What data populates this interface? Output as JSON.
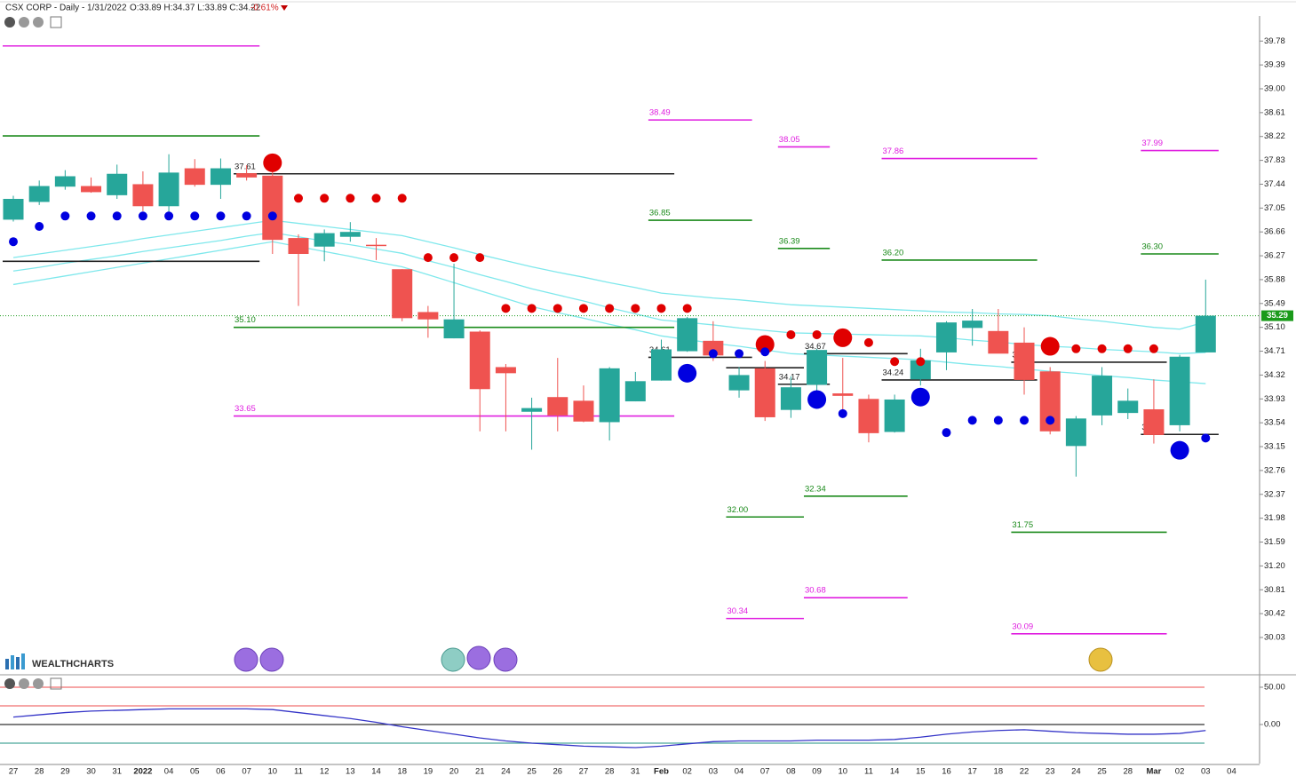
{
  "header": {
    "symbol_line": "CSX CORP - Daily - 1/31/2022",
    "ohlc": "O:33.89 H:34.37 L:33.89 C:34.22",
    "change": "-0.61%"
  },
  "logo": "WEALTHCHARTS",
  "chart_data": [
    {
      "type": "candlestick",
      "categories": [
        "27",
        "28",
        "29",
        "30",
        "31",
        "2022",
        "04",
        "05",
        "06",
        "07",
        "10",
        "11",
        "12",
        "13",
        "14",
        "18",
        "19",
        "20",
        "21",
        "24",
        "25",
        "26",
        "27",
        "28",
        "31",
        "Feb",
        "02",
        "03",
        "04",
        "07",
        "08",
        "09",
        "10",
        "11",
        "14",
        "15",
        "16",
        "17",
        "18",
        "22",
        "23",
        "24",
        "25",
        "28",
        "Mar",
        "02",
        "03",
        "04"
      ],
      "open": [
        36.86,
        37.15,
        37.4,
        37.41,
        37.26,
        37.44,
        37.08,
        37.7,
        37.43,
        37.62,
        37.58,
        36.56,
        36.42,
        36.58,
        36.45,
        36.05,
        35.35,
        34.92,
        35.03,
        34.45,
        33.72,
        33.96,
        33.9,
        33.55,
        33.89,
        34.23,
        34.71,
        34.88,
        34.07,
        34.43,
        33.75,
        34.16,
        34.02,
        33.93,
        33.39,
        34.25,
        34.69,
        35.09,
        35.04,
        34.85,
        34.38,
        33.16,
        33.66,
        33.7,
        33.76,
        33.5,
        34.69,
        null
      ],
      "high": [
        37.25,
        37.5,
        37.67,
        37.55,
        37.76,
        37.65,
        37.93,
        37.85,
        37.86,
        37.75,
        37.7,
        36.62,
        36.7,
        36.82,
        36.56,
        36.05,
        35.45,
        36.14,
        35.05,
        34.5,
        33.95,
        34.6,
        34.15,
        34.45,
        34.37,
        34.9,
        35.27,
        35.2,
        34.45,
        34.55,
        34.3,
        34.75,
        34.6,
        34.0,
        34.0,
        34.75,
        35.2,
        35.4,
        35.4,
        35.1,
        34.45,
        33.65,
        34.45,
        34.1,
        34.25,
        34.65,
        35.88,
        null
      ],
      "low": [
        36.83,
        37.1,
        37.35,
        37.3,
        37.2,
        37.0,
        36.95,
        37.4,
        37.2,
        37.5,
        36.3,
        35.45,
        36.18,
        36.5,
        36.2,
        35.2,
        34.93,
        34.92,
        33.4,
        33.4,
        33.1,
        33.4,
        33.55,
        33.25,
        33.89,
        34.23,
        34.7,
        34.55,
        33.95,
        33.57,
        33.62,
        34.0,
        33.75,
        33.22,
        33.38,
        34.15,
        34.4,
        34.8,
        34.7,
        34.0,
        33.35,
        32.66,
        33.5,
        33.6,
        33.2,
        33.4,
        34.69,
        null
      ],
      "close": [
        37.2,
        37.41,
        37.57,
        37.31,
        37.61,
        37.08,
        37.63,
        37.43,
        37.7,
        37.55,
        36.53,
        36.3,
        36.64,
        36.66,
        36.44,
        35.25,
        35.23,
        35.23,
        34.09,
        34.35,
        33.78,
        33.66,
        33.56,
        34.43,
        34.22,
        34.74,
        35.25,
        34.64,
        34.32,
        33.63,
        34.12,
        34.73,
        33.98,
        33.37,
        33.92,
        34.56,
        35.18,
        35.21,
        34.67,
        34.24,
        33.4,
        33.61,
        34.31,
        33.9,
        33.34,
        34.62,
        35.29,
        null
      ],
      "up_color": "#26a69a",
      "down_color": "#ef5350",
      "ylim": [
        29.42,
        40.19
      ],
      "yticks": [
        39.78,
        39.39,
        {
          "value": 39.0,
          "label": "39.00"
        },
        38.61,
        38.22,
        37.83,
        37.44,
        37.05,
        36.66,
        36.27,
        35.88,
        35.49,
        {
          "value": 35.1,
          "label": "35.10"
        },
        34.71,
        34.32,
        33.93,
        33.54,
        33.15,
        32.76,
        32.37,
        31.98,
        31.59,
        {
          "value": 31.2,
          "label": "31.20"
        },
        30.81,
        30.42,
        30.03
      ],
      "last_price": 35.29,
      "last_price_color": "#1a9a1a",
      "bands": {
        "color": "#7fe8ec",
        "series": [
          [
            36.24,
            36.3,
            36.36,
            36.42,
            36.48,
            36.55,
            36.61,
            36.67,
            36.73,
            36.79,
            36.85,
            36.8,
            36.75,
            36.7,
            36.65,
            36.6,
            36.5,
            36.4,
            36.29,
            36.19,
            36.09,
            36.0,
            35.92,
            35.83,
            35.75,
            35.66,
            35.62,
            35.58,
            35.55,
            35.51,
            35.47,
            35.45,
            35.43,
            35.41,
            35.39,
            35.37,
            35.35,
            35.34,
            35.32,
            35.31,
            35.29,
            35.24,
            35.2,
            35.15,
            35.1,
            35.07,
            35.19,
            null
          ],
          [
            36.02,
            36.08,
            36.15,
            36.21,
            36.27,
            36.34,
            36.4,
            36.46,
            36.52,
            36.59,
            36.65,
            36.58,
            36.51,
            36.45,
            36.38,
            36.31,
            36.19,
            36.08,
            35.96,
            35.85,
            35.73,
            35.63,
            35.53,
            35.42,
            35.32,
            35.22,
            35.18,
            35.14,
            35.09,
            35.05,
            35.01,
            35.0,
            34.99,
            34.98,
            34.97,
            34.96,
            34.93,
            34.89,
            34.86,
            34.82,
            34.79,
            34.77,
            34.74,
            34.72,
            34.7,
            34.67,
            34.69,
            null
          ],
          [
            35.8,
            35.87,
            35.94,
            36.01,
            36.08,
            36.15,
            36.22,
            36.29,
            36.36,
            36.43,
            36.5,
            36.42,
            36.34,
            36.26,
            36.17,
            36.09,
            35.96,
            35.83,
            35.7,
            35.57,
            35.44,
            35.34,
            35.25,
            35.15,
            35.06,
            34.96,
            34.9,
            34.84,
            34.79,
            34.73,
            34.67,
            34.65,
            34.63,
            34.61,
            34.59,
            34.57,
            34.53,
            34.49,
            34.46,
            34.42,
            34.38,
            34.35,
            34.31,
            34.28,
            34.24,
            34.21,
            34.18,
            null
          ]
        ]
      },
      "dots": [
        {
          "color": "#e00000",
          "size": "small",
          "values": [
            null,
            null,
            null,
            null,
            null,
            null,
            null,
            null,
            null,
            null,
            null,
            37.21,
            37.21,
            37.21,
            37.21,
            37.21,
            36.24,
            36.24,
            36.24,
            35.41,
            35.41,
            35.41,
            35.41,
            35.41,
            35.41,
            35.41,
            35.41,
            null,
            null,
            null,
            34.98,
            34.98,
            null,
            34.85,
            34.54,
            34.54,
            null,
            null,
            null,
            null,
            null,
            34.75,
            34.75,
            34.75,
            34.75,
            null,
            null,
            null
          ]
        },
        {
          "color": "#e00000",
          "size": "large",
          "values": [
            null,
            null,
            null,
            null,
            null,
            null,
            null,
            null,
            null,
            null,
            37.79,
            null,
            null,
            null,
            null,
            null,
            null,
            null,
            null,
            null,
            null,
            null,
            null,
            null,
            null,
            null,
            null,
            null,
            null,
            34.82,
            null,
            null,
            34.93,
            null,
            null,
            null,
            null,
            null,
            null,
            null,
            34.79,
            null,
            null,
            null,
            null,
            null,
            null,
            null
          ]
        },
        {
          "color": "#0000e0",
          "size": "small",
          "values": [
            36.5,
            36.75,
            36.92,
            36.92,
            36.92,
            36.92,
            36.92,
            36.92,
            36.92,
            36.92,
            36.92,
            null,
            null,
            null,
            null,
            null,
            null,
            null,
            null,
            null,
            null,
            null,
            null,
            null,
            null,
            null,
            null,
            34.67,
            34.67,
            34.7,
            null,
            null,
            33.69,
            null,
            null,
            null,
            33.38,
            33.58,
            33.58,
            33.58,
            33.58,
            null,
            null,
            null,
            null,
            null,
            33.29,
            null
          ]
        },
        {
          "color": "#0000e0",
          "size": "large",
          "values": [
            null,
            null,
            null,
            null,
            null,
            null,
            null,
            null,
            null,
            null,
            null,
            null,
            null,
            null,
            null,
            null,
            null,
            null,
            null,
            null,
            null,
            null,
            null,
            null,
            null,
            null,
            34.35,
            null,
            null,
            null,
            null,
            33.92,
            null,
            null,
            null,
            33.96,
            null,
            null,
            null,
            null,
            null,
            null,
            null,
            null,
            null,
            33.09,
            null,
            null
          ]
        }
      ],
      "levels": [
        {
          "value": 39.7,
          "color": "#e020e0",
          "span": [
            0,
            9
          ]
        },
        {
          "value": 38.23,
          "color": "#1a8a1a",
          "span": [
            0,
            9
          ]
        },
        {
          "value": 36.18,
          "color": "#222222",
          "span": [
            0,
            9
          ]
        },
        {
          "label": "37.61",
          "value": 37.61,
          "color": "#222222",
          "span": [
            9,
            25
          ]
        },
        {
          "label": "35.10",
          "value": 35.1,
          "color": "#1a8a1a",
          "span": [
            9,
            25
          ]
        },
        {
          "label": "33.65",
          "value": 33.65,
          "color": "#e020e0",
          "span": [
            9,
            25
          ]
        },
        {
          "label": "38.49",
          "value": 38.49,
          "color": "#e020e0",
          "span": [
            25,
            28
          ]
        },
        {
          "label": "36.85",
          "value": 36.85,
          "color": "#1a8a1a",
          "span": [
            25,
            28
          ]
        },
        {
          "label": "34.61",
          "value": 34.61,
          "color": "#222222",
          "span": [
            25,
            28
          ]
        },
        {
          "value": 34.44,
          "color": "#222222",
          "span": [
            28,
            30
          ]
        },
        {
          "label": "32.00",
          "value": 32.0,
          "color": "#1a8a1a",
          "span": [
            28,
            30
          ]
        },
        {
          "label": "30.34",
          "value": 30.34,
          "color": "#e020e0",
          "span": [
            28,
            30
          ]
        },
        {
          "label": "38.05",
          "value": 38.05,
          "color": "#e020e0",
          "span": [
            30,
            31
          ]
        },
        {
          "label": "36.39",
          "value": 36.39,
          "color": "#1a8a1a",
          "span": [
            30,
            31
          ]
        },
        {
          "label": "34.17",
          "value": 34.17,
          "color": "#222222",
          "span": [
            30,
            31
          ]
        },
        {
          "label": "34.67",
          "value": 34.67,
          "color": "#222222",
          "span": [
            31,
            34
          ]
        },
        {
          "label": "32.34",
          "value": 32.34,
          "color": "#1a8a1a",
          "span": [
            31,
            34
          ]
        },
        {
          "label": "30.68",
          "value": 30.68,
          "color": "#e020e0",
          "span": [
            31,
            34
          ]
        },
        {
          "label": "37.86",
          "value": 37.86,
          "color": "#e020e0",
          "span": [
            34,
            39
          ]
        },
        {
          "label": "36.20",
          "value": 36.2,
          "color": "#1a8a1a",
          "span": [
            34,
            39
          ]
        },
        {
          "label": "34.24",
          "value": 34.24,
          "color": "#222222",
          "span": [
            34,
            39
          ]
        },
        {
          "label": "34.53",
          "value": 34.53,
          "color": "#222222",
          "span": [
            39,
            44
          ]
        },
        {
          "label": "31.75",
          "value": 31.75,
          "color": "#1a8a1a",
          "span": [
            39,
            44
          ]
        },
        {
          "label": "30.09",
          "value": 30.09,
          "color": "#e020e0",
          "span": [
            39,
            44
          ]
        },
        {
          "label": "37.99",
          "value": 37.99,
          "color": "#e020e0",
          "span": [
            44,
            46
          ]
        },
        {
          "label": "36.30",
          "value": 36.3,
          "color": "#1a8a1a",
          "span": [
            44,
            46
          ]
        },
        {
          "label": "33.35",
          "value": 33.35,
          "color": "#222222",
          "span": [
            44,
            46
          ]
        }
      ]
    },
    {
      "type": "line",
      "values": [
        10,
        13,
        16,
        18,
        19,
        20,
        21,
        21,
        21,
        21,
        20,
        16,
        12,
        8,
        3,
        -3,
        -8,
        -13,
        -18,
        -22,
        -25,
        -27,
        -29,
        -30,
        -31,
        -29,
        -26,
        -23,
        -22,
        -22,
        -22,
        -21,
        -21,
        -21,
        -20,
        -17,
        -13,
        -10,
        -8,
        -7,
        -9,
        -11,
        -12,
        -13,
        -13,
        -12,
        -8,
        null
      ],
      "color": "#3535c8",
      "ylim": [
        -52.4,
        64.3
      ],
      "yticks": [
        {
          "value": 50,
          "label": "50.00"
        },
        {
          "value": 0,
          "label": "0.00"
        }
      ],
      "levels": [
        {
          "value": 50,
          "color": "#f07070"
        },
        {
          "value": 25,
          "color": "#f07070"
        },
        {
          "value": 0,
          "color": "#333333"
        },
        {
          "value": -25,
          "color": "#4aa89a"
        }
      ]
    }
  ]
}
